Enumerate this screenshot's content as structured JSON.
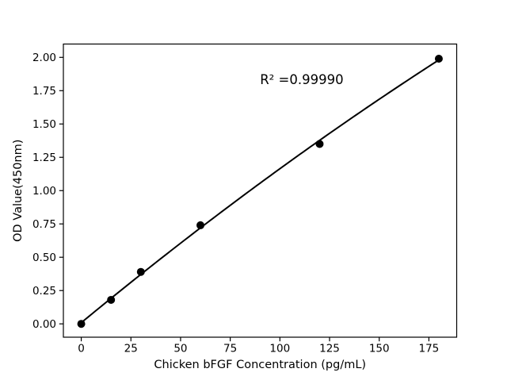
{
  "figure": {
    "background": "#ffffff"
  },
  "chart_data": {
    "type": "scatter",
    "xlabel": "Chicken bFGF Concentration (pg/mL)",
    "ylabel": "OD Value(450nm)",
    "x": [
      0,
      15,
      30,
      60,
      120,
      180
    ],
    "y": [
      0.0,
      0.18,
      0.39,
      0.74,
      1.35,
      1.99
    ],
    "fit": "quadratic",
    "annotation": {
      "text": "R² =0.99990",
      "x": 111,
      "y": 1.8
    },
    "x_ticks": [
      {
        "v": 0,
        "label": "0"
      },
      {
        "v": 25,
        "label": "25"
      },
      {
        "v": 50,
        "label": "50"
      },
      {
        "v": 75,
        "label": "75"
      },
      {
        "v": 100,
        "label": "100"
      },
      {
        "v": 125,
        "label": "125"
      },
      {
        "v": 150,
        "label": "150"
      },
      {
        "v": 175,
        "label": "175"
      }
    ],
    "y_ticks": [
      {
        "v": 0.0,
        "label": "0.00"
      },
      {
        "v": 0.25,
        "label": "0.25"
      },
      {
        "v": 0.5,
        "label": "0.50"
      },
      {
        "v": 0.75,
        "label": "0.75"
      },
      {
        "v": 1.0,
        "label": "1.00"
      },
      {
        "v": 1.25,
        "label": "1.25"
      },
      {
        "v": 1.5,
        "label": "1.50"
      },
      {
        "v": 1.75,
        "label": "1.75"
      },
      {
        "v": 2.0,
        "label": "2.00"
      }
    ],
    "xlim": [
      -9,
      189
    ],
    "ylim": [
      -0.1,
      2.1
    ],
    "grid": false,
    "marker_color": "#000000",
    "line_color": "#000000",
    "axis_color": "#000000",
    "background": "#ffffff"
  }
}
